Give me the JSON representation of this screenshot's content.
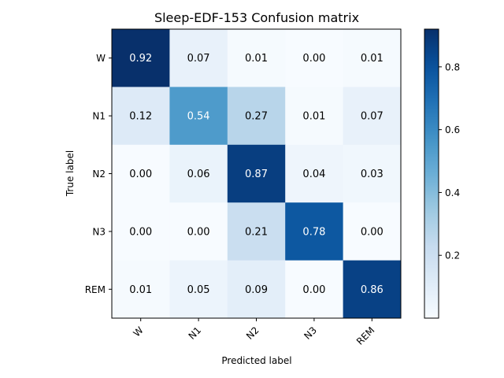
{
  "chart_data": {
    "type": "heatmap",
    "title": "Sleep-EDF-153 Confusion matrix",
    "xlabel": "Predicted label",
    "ylabel": "True label",
    "x_categories": [
      "W",
      "N1",
      "N2",
      "N3",
      "REM"
    ],
    "y_categories": [
      "W",
      "N1",
      "N2",
      "N3",
      "REM"
    ],
    "values": [
      [
        0.92,
        0.07,
        0.01,
        0.0,
        0.01
      ],
      [
        0.12,
        0.54,
        0.27,
        0.01,
        0.07
      ],
      [
        0.0,
        0.06,
        0.87,
        0.04,
        0.03
      ],
      [
        0.0,
        0.0,
        0.21,
        0.78,
        0.0
      ],
      [
        0.01,
        0.05,
        0.09,
        0.0,
        0.86
      ]
    ],
    "colormap": "Blues",
    "colorbar": {
      "range": [
        0.0,
        0.92
      ],
      "ticks": [
        0.2,
        0.4,
        0.6,
        0.8
      ]
    },
    "text_threshold": 0.46,
    "grid": false
  }
}
